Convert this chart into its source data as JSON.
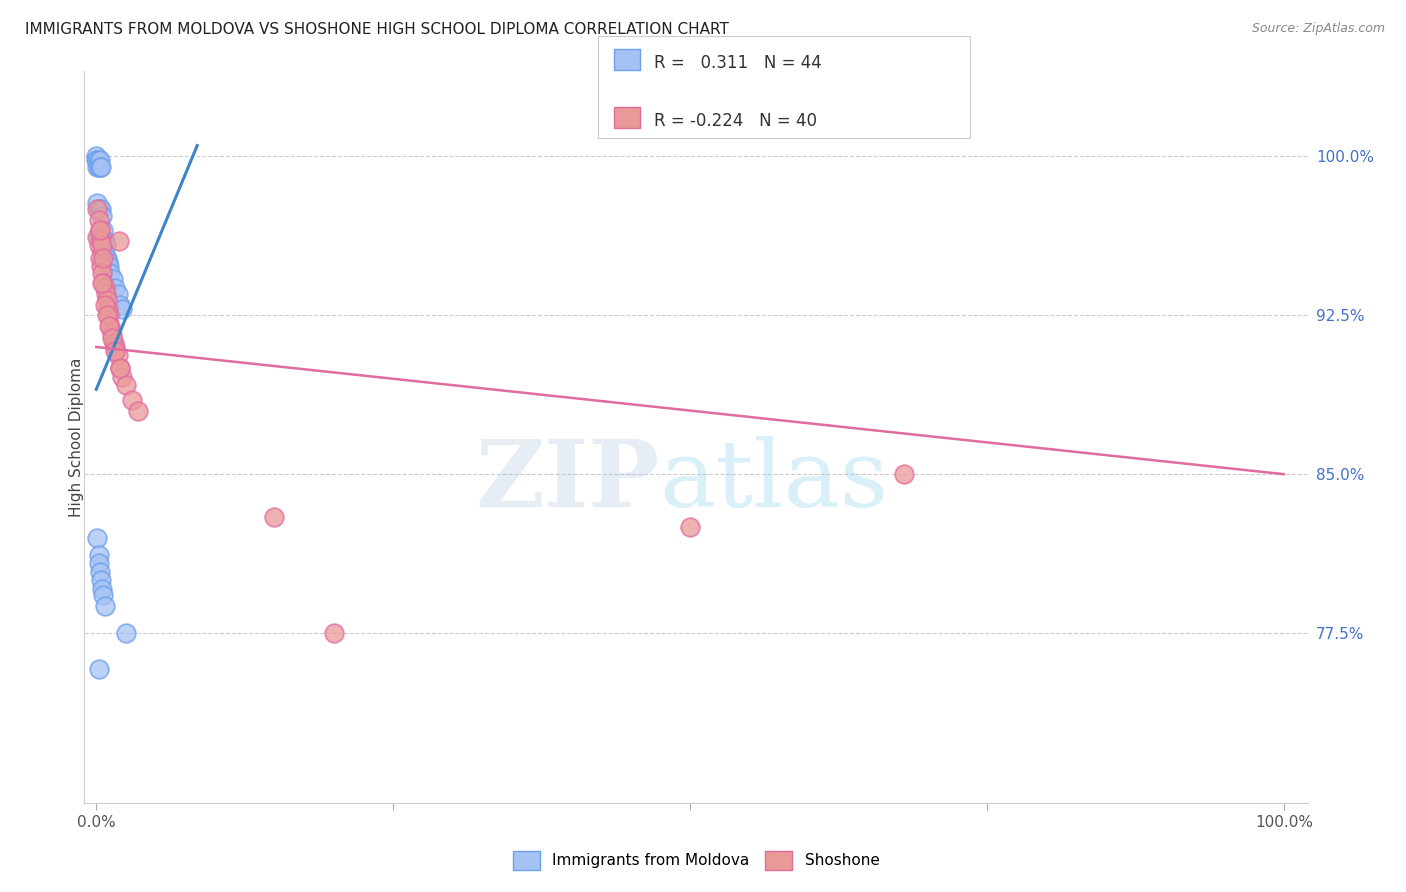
{
  "title": "IMMIGRANTS FROM MOLDOVA VS SHOSHONE HIGH SCHOOL DIPLOMA CORRELATION CHART",
  "source": "Source: ZipAtlas.com",
  "ylabel": "High School Diploma",
  "ytick_labels": [
    "100.0%",
    "92.5%",
    "85.0%",
    "77.5%"
  ],
  "ytick_values": [
    1.0,
    0.925,
    0.85,
    0.775
  ],
  "xlim": [
    0.0,
    1.0
  ],
  "ylim": [
    0.695,
    1.04
  ],
  "legend_r_blue": "0.311",
  "legend_n_blue": "44",
  "legend_r_pink": "-0.224",
  "legend_n_pink": "40",
  "blue_color": "#a4c2f4",
  "blue_edge": "#6d9eeb",
  "pink_color": "#ea9999",
  "pink_edge": "#e06c9f",
  "trendline_blue": "#3d85c8",
  "trendline_pink": "#e06c9f",
  "legend_label_blue": "Immigrants from Moldova",
  "legend_label_pink": "Shoshone",
  "watermark_zip": "ZIP",
  "watermark_atlas": "atlas",
  "blue_x": [
    0.0,
    0.0,
    0.001,
    0.001,
    0.001,
    0.002,
    0.002,
    0.002,
    0.002,
    0.003,
    0.003,
    0.003,
    0.003,
    0.004,
    0.004,
    0.004,
    0.005,
    0.005,
    0.005,
    0.006,
    0.006,
    0.006,
    0.007,
    0.007,
    0.008,
    0.009,
    0.01,
    0.011,
    0.012,
    0.014,
    0.016,
    0.018,
    0.02,
    0.022,
    0.001,
    0.002,
    0.002,
    0.003,
    0.004,
    0.005,
    0.006,
    0.007,
    0.002,
    0.025
  ],
  "blue_y": [
    1.0,
    0.998,
    0.998,
    0.995,
    0.978,
    0.998,
    0.995,
    0.975,
    0.963,
    0.998,
    0.995,
    0.975,
    0.962,
    0.995,
    0.975,
    0.96,
    0.972,
    0.962,
    0.955,
    0.965,
    0.958,
    0.952,
    0.96,
    0.953,
    0.958,
    0.952,
    0.95,
    0.948,
    0.945,
    0.942,
    0.938,
    0.935,
    0.93,
    0.928,
    0.82,
    0.812,
    0.808,
    0.804,
    0.8,
    0.796,
    0.793,
    0.788,
    0.758,
    0.775
  ],
  "pink_x": [
    0.001,
    0.001,
    0.002,
    0.002,
    0.003,
    0.003,
    0.004,
    0.004,
    0.005,
    0.005,
    0.006,
    0.006,
    0.007,
    0.008,
    0.009,
    0.01,
    0.011,
    0.012,
    0.013,
    0.015,
    0.016,
    0.018,
    0.019,
    0.02,
    0.022,
    0.025,
    0.03,
    0.035,
    0.003,
    0.005,
    0.007,
    0.009,
    0.011,
    0.013,
    0.016,
    0.02,
    0.15,
    0.5,
    0.68,
    0.2
  ],
  "pink_y": [
    0.975,
    0.962,
    0.97,
    0.958,
    0.965,
    0.952,
    0.96,
    0.948,
    0.958,
    0.945,
    0.952,
    0.94,
    0.938,
    0.935,
    0.932,
    0.928,
    0.925,
    0.92,
    0.916,
    0.912,
    0.91,
    0.906,
    0.96,
    0.9,
    0.896,
    0.892,
    0.885,
    0.88,
    0.965,
    0.94,
    0.93,
    0.925,
    0.92,
    0.914,
    0.908,
    0.9,
    0.83,
    0.825,
    0.85,
    0.775
  ],
  "pink_trendline_x": [
    0.0,
    1.0
  ],
  "pink_trendline_y": [
    0.91,
    0.85
  ],
  "blue_trendline_x": [
    0.0,
    0.085
  ],
  "blue_trendline_y": [
    0.89,
    1.005
  ]
}
